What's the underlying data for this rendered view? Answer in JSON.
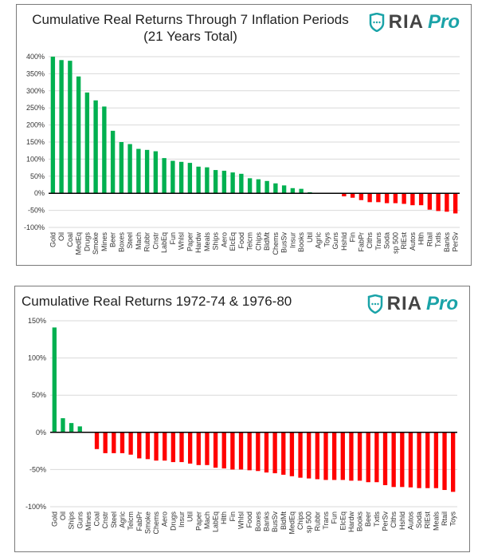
{
  "logo": {
    "text1": "RIA",
    "text2": "Pro",
    "color": "#1aa3a8"
  },
  "colors": {
    "positive": "#00b050",
    "negative": "#ff0000",
    "zero_line": "#000000",
    "grid": "#d9d9d9"
  },
  "chart_data": [
    {
      "type": "bar",
      "title": "Cumulative Real Returns Through 7 Inflation Periods (21 Years Total)",
      "ylim": [
        -100,
        400
      ],
      "yticks": [
        -100,
        -50,
        0,
        50,
        100,
        150,
        200,
        250,
        300,
        350,
        400
      ],
      "ytick_labels": [
        "-100%",
        "-50%",
        "0%",
        "50%",
        "100%",
        "150%",
        "200%",
        "250%",
        "300%",
        "350%",
        "400%"
      ],
      "grid": true,
      "categories": [
        "Gold",
        "Oil",
        "Coal",
        "MedEq",
        "Drugs",
        "Smoke",
        "Mines",
        "Beer",
        "Boxes",
        "Steel",
        "Mach",
        "Rubbr",
        "Cnstr",
        "LabEq",
        "Fun",
        "Whlsl",
        "Paper",
        "Hardw",
        "Meals",
        "Ships",
        "Aero",
        "ElcEq",
        "Food",
        "Telcm",
        "Chips",
        "BldMt",
        "Chems",
        "BusSv",
        "Insur",
        "Books",
        "Util",
        "Agric",
        "Toys",
        "Guns",
        "Hshld",
        "Fin",
        "FabPr",
        "Clths",
        "Trans",
        "Soda",
        "sp 500",
        "RlEst",
        "Autos",
        "Hlth",
        "Rtail",
        "Txtls",
        "Banks",
        "PerSv"
      ],
      "values": [
        400,
        390,
        388,
        342,
        295,
        272,
        254,
        183,
        150,
        144,
        130,
        127,
        123,
        103,
        95,
        92,
        89,
        78,
        76,
        68,
        66,
        61,
        57,
        44,
        41,
        36,
        29,
        23,
        15,
        13,
        3,
        0,
        0,
        0,
        -9,
        -13,
        -20,
        -26,
        -26,
        -29,
        -29,
        -31,
        -35,
        -35,
        -48,
        -52,
        -54,
        -59
      ]
    },
    {
      "type": "bar",
      "title": "Cumulative Real Returns 1972-74 & 1976-80",
      "ylim": [
        -100,
        150
      ],
      "yticks": [
        -100,
        -50,
        0,
        50,
        100,
        150
      ],
      "ytick_labels": [
        "-100%",
        "-50%",
        "0%",
        "50%",
        "100%",
        "150%"
      ],
      "grid": true,
      "categories": [
        "Gold",
        "Oil",
        "Ships",
        "Guns",
        "Mines",
        "Coal",
        "Cnstr",
        "Steel",
        "Agric",
        "Telcm",
        "FabPr",
        "Smoke",
        "Chems",
        "Aero",
        "Drugs",
        "Insur",
        "Util",
        "Paper",
        "Mach",
        "LabEq",
        "Hlth",
        "Fin",
        "Whlsl",
        "Food",
        "Boxes",
        "Banks",
        "BusSv",
        "BldMt",
        "MedEq",
        "Chips",
        "sp 500",
        "Rubbr",
        "Trans",
        "Fun",
        "ElcEq",
        "Hardw",
        "Books",
        "Beer",
        "Txtls",
        "PerSv",
        "Clths",
        "Hshld",
        "Autos",
        "Soda",
        "RlEst",
        "Meals",
        "Rtail",
        "Toys"
      ],
      "values": [
        141,
        19,
        12.5,
        8,
        0,
        -22.5,
        -28,
        -28,
        -28,
        -30,
        -35,
        -36,
        -38,
        -38,
        -40,
        -40,
        -42,
        -44,
        -44,
        -47.5,
        -48.5,
        -50,
        -50,
        -51,
        -52,
        -54,
        -55,
        -57,
        -59,
        -61,
        -62,
        -63,
        -64,
        -64,
        -64,
        -65,
        -65,
        -67,
        -67,
        -71,
        -73.5,
        -73.5,
        -74,
        -75,
        -75,
        -75,
        -77.5,
        -80
      ]
    }
  ]
}
